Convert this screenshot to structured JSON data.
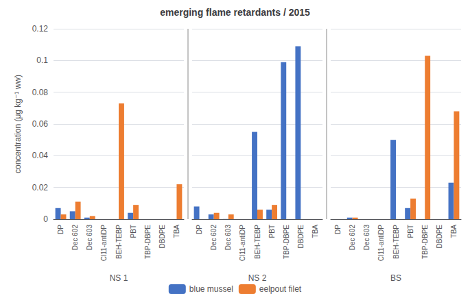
{
  "chart_data": {
    "type": "bar",
    "title": "emerging flame retardants / 2015",
    "ylabel": "concentration (μg kg⁻¹ ww)",
    "categories": [
      "DP",
      "Dec 602",
      "Dec 603",
      "Cl11-antiDP",
      "BEH-TEBP",
      "PBT",
      "TBP-DBPE",
      "DBDPE",
      "TBA",
      "DP",
      "Dec 602",
      "Dec 603",
      "Cl11-antiDP",
      "BEH-TEBP",
      "PBT",
      "TBP-DBPE",
      "DBDPE",
      "TBA",
      "DP",
      "Dec 602",
      "Dec 603",
      "Cl11-antiDP",
      "BEH-TEBP",
      "PBT",
      "TBP-DBPE",
      "DBDPE",
      "TBA"
    ],
    "groups": [
      "NS 1",
      "NS 2",
      "BS"
    ],
    "series": [
      {
        "name": "blue mussel",
        "color": "#4472C4",
        "values": [
          0.007,
          0.005,
          0.001,
          0,
          0,
          0.004,
          0,
          0,
          0,
          0.008,
          0.003,
          0.0001,
          0,
          0.055,
          0.006,
          0.099,
          0.109,
          0,
          0,
          0.001,
          0,
          0,
          0.05,
          0.007,
          0,
          0,
          0.023
        ]
      },
      {
        "name": "eelpout filet",
        "color": "#ED7D31",
        "values": [
          0.003,
          0.011,
          0.002,
          0,
          0.073,
          0.009,
          0,
          0,
          0.022,
          0,
          0.004,
          0.003,
          0,
          0.006,
          0.009,
          0,
          0,
          0,
          0,
          0.001,
          0,
          0,
          0,
          0.013,
          0.103,
          0,
          0.068
        ]
      }
    ],
    "ylim": [
      0,
      0.12
    ],
    "yticks": [
      0,
      0.02,
      0.04,
      0.06,
      0.08,
      0.1,
      0.12
    ],
    "grid": true,
    "legend": "bottom"
  }
}
